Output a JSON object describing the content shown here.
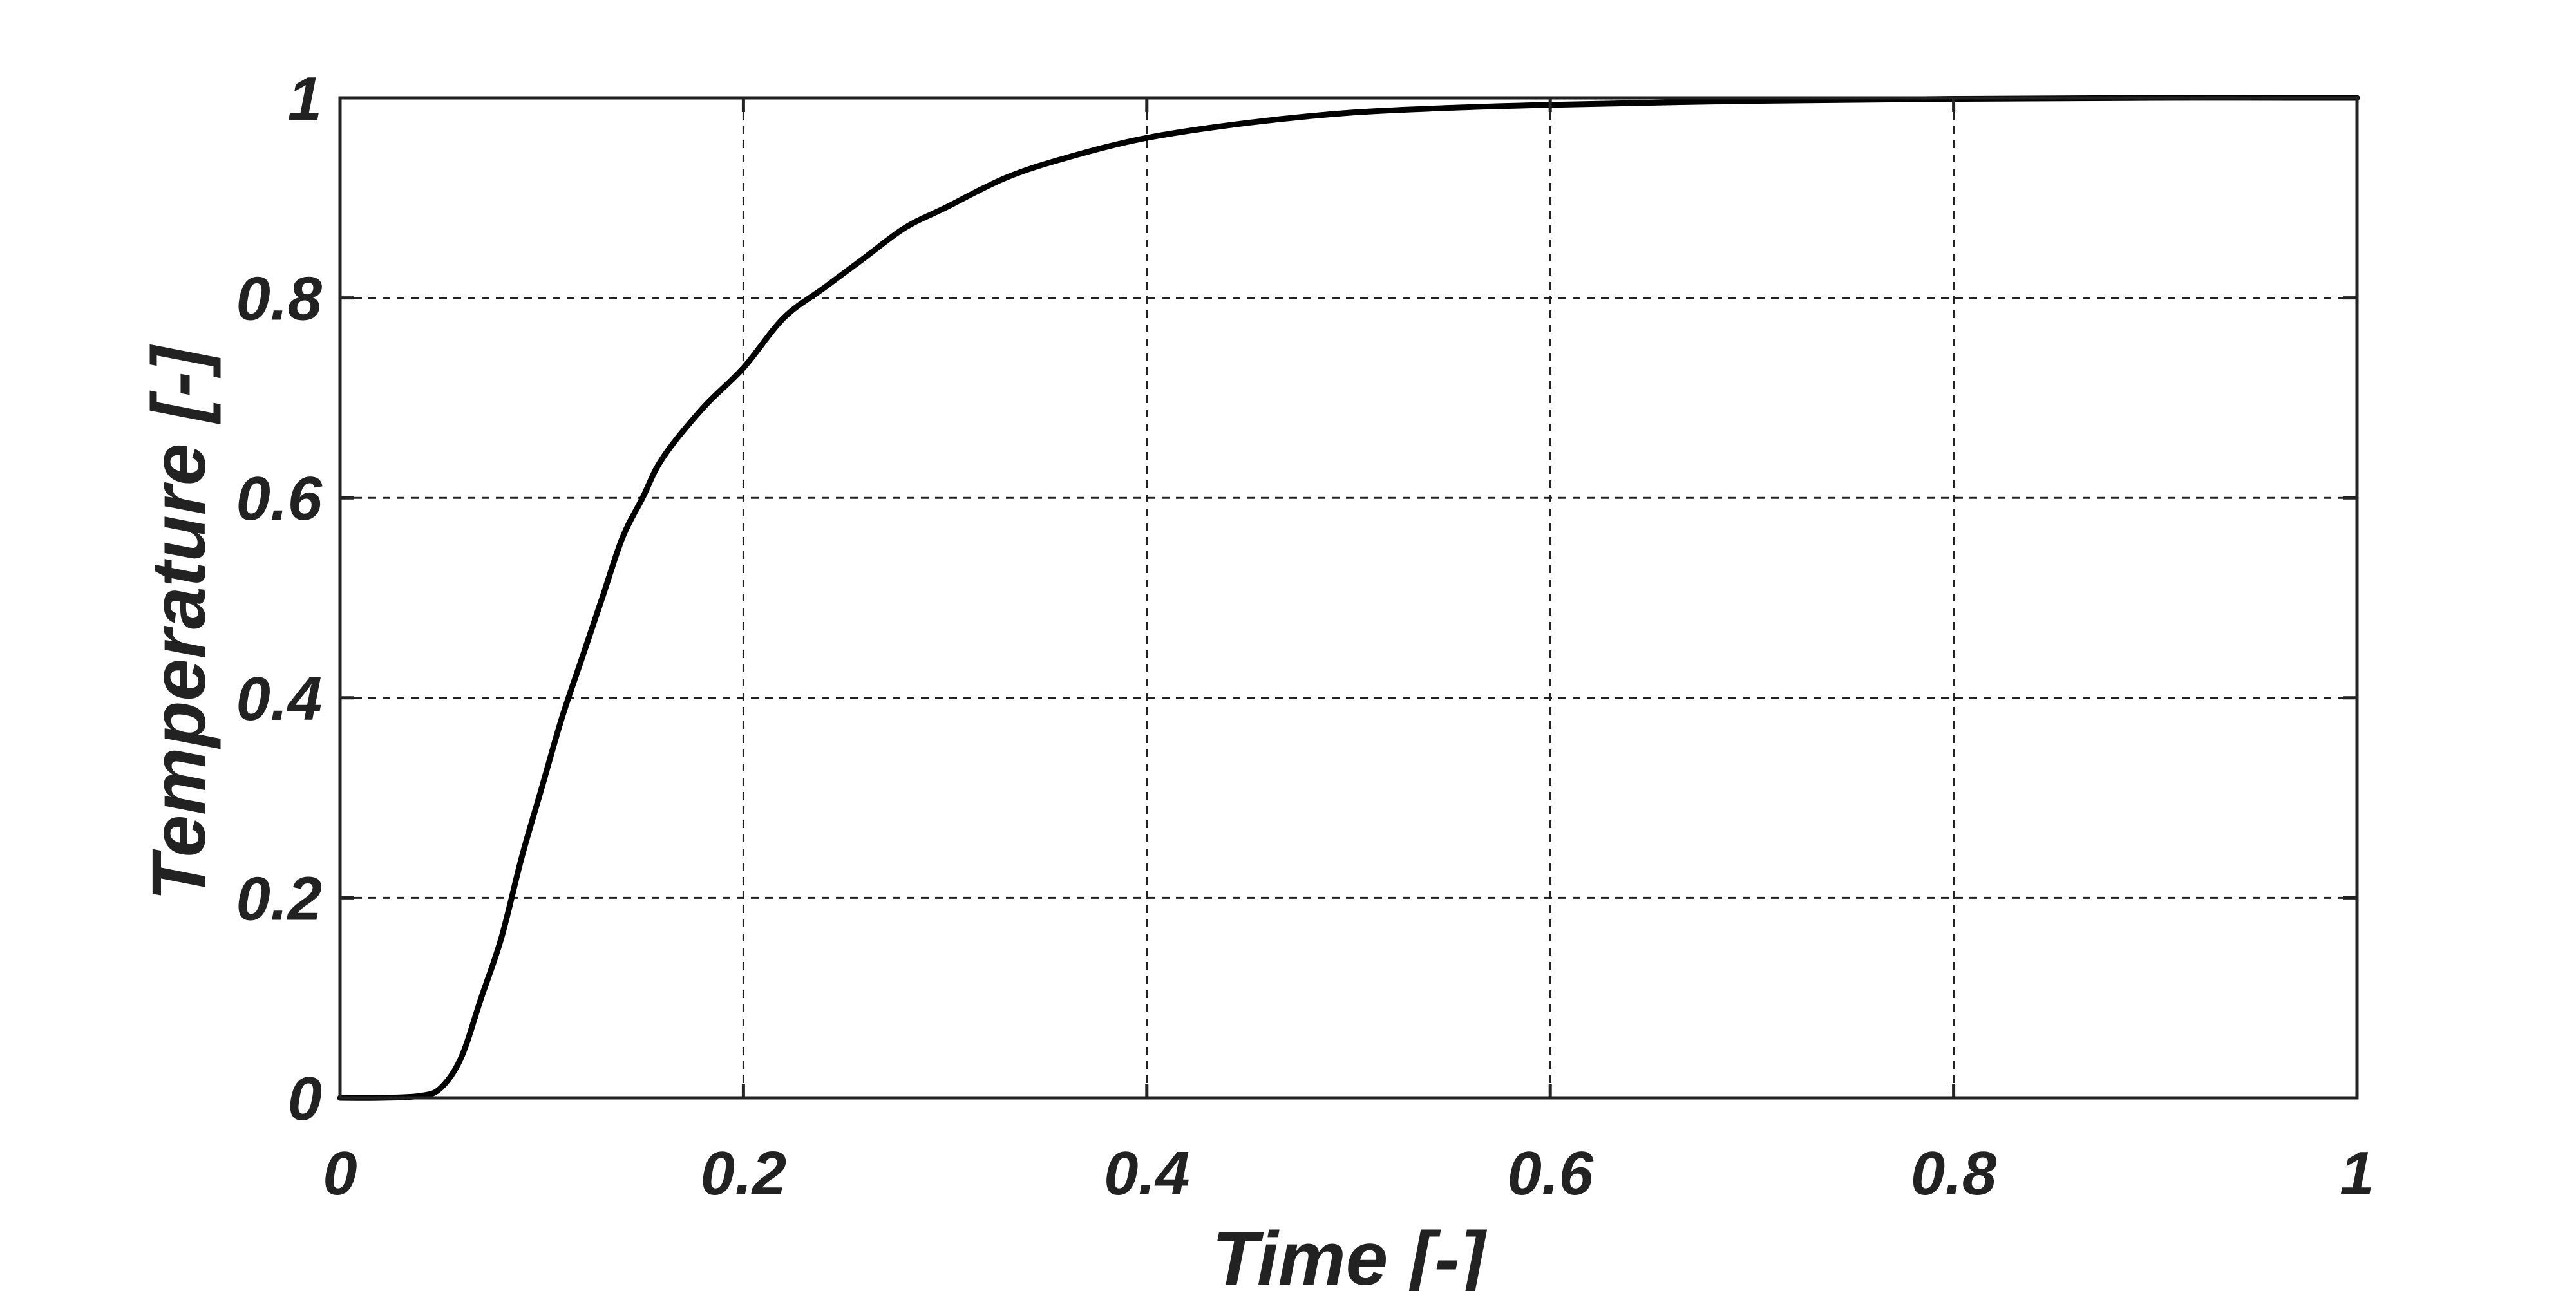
{
  "chart_data": {
    "type": "line",
    "title": "",
    "xlabel": "Time [-]",
    "ylabel": "Temperature [-]",
    "xlim": [
      0,
      1
    ],
    "ylim": [
      0,
      1
    ],
    "x_ticks": [
      0,
      0.2,
      0.4,
      0.6,
      0.8,
      1
    ],
    "y_ticks": [
      0,
      0.2,
      0.4,
      0.6,
      0.8,
      1
    ],
    "x_tick_labels": [
      "0",
      "0.2",
      "0.4",
      "0.6",
      "0.8",
      "1"
    ],
    "y_tick_labels": [
      "0",
      "0.2",
      "0.4",
      "0.6",
      "0.8",
      "1"
    ],
    "grid": true,
    "grid_style": "dashed",
    "line_color": "#000000",
    "series": [
      {
        "x": [
          0,
          0.02,
          0.04,
          0.05,
          0.06,
          0.07,
          0.08,
          0.09,
          0.1,
          0.11,
          0.12,
          0.13,
          0.14,
          0.15,
          0.16,
          0.18,
          0.2,
          0.22,
          0.24,
          0.26,
          0.28,
          0.3,
          0.33,
          0.36,
          0.4,
          0.45,
          0.5,
          0.55,
          0.6,
          0.7,
          0.8,
          0.9,
          1.0
        ],
        "y": [
          0,
          0,
          0.002,
          0.01,
          0.04,
          0.1,
          0.16,
          0.24,
          0.31,
          0.38,
          0.44,
          0.5,
          0.56,
          0.6,
          0.64,
          0.69,
          0.73,
          0.78,
          0.81,
          0.84,
          0.87,
          0.89,
          0.92,
          0.94,
          0.96,
          0.975,
          0.985,
          0.99,
          0.993,
          0.997,
          0.999,
          1.0,
          1.0
        ]
      }
    ]
  }
}
